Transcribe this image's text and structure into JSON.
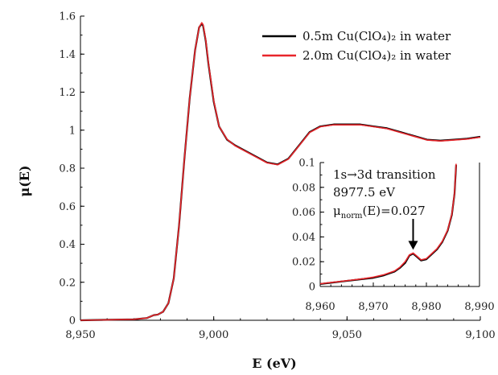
{
  "chart_data": [
    {
      "type": "line",
      "title": "",
      "xlabel": "E (eV)",
      "ylabel": "μ(E)",
      "xlim": [
        8950,
        9100
      ],
      "ylim": [
        0,
        1.6
      ],
      "x_ticks": [
        "8,950",
        "9,000",
        "9,050",
        "9,100"
      ],
      "x_tick_values": [
        8950,
        9000,
        9050,
        9100
      ],
      "y_ticks": [
        "0",
        "0.2",
        "0.4",
        "0.6",
        "0.8",
        "1",
        "1.2",
        "1.4",
        "1.6"
      ],
      "y_tick_values": [
        0,
        0.2,
        0.4,
        0.6,
        0.8,
        1.0,
        1.2,
        1.4,
        1.6
      ],
      "legend_position": "top-right",
      "series": [
        {
          "name": "0.5m Cu(ClO₄)₂ in water",
          "color": "#000000",
          "x": [
            8950,
            8970,
            8975,
            8977.5,
            8979,
            8981,
            8983,
            8985,
            8987,
            8989,
            8991,
            8993,
            8994.5,
            8995.5,
            8996,
            8997,
            8998,
            9000,
            9002,
            9005,
            9008,
            9012,
            9016,
            9020,
            9024,
            9028,
            9032,
            9036,
            9040,
            9045,
            9050,
            9055,
            9060,
            9065,
            9070,
            9075,
            9080,
            9085,
            9090,
            9095,
            9100
          ],
          "y": [
            0.0,
            0.005,
            0.012,
            0.027,
            0.03,
            0.045,
            0.09,
            0.22,
            0.5,
            0.85,
            1.17,
            1.42,
            1.54,
            1.56,
            1.55,
            1.47,
            1.35,
            1.15,
            1.02,
            0.95,
            0.92,
            0.89,
            0.86,
            0.83,
            0.82,
            0.85,
            0.92,
            0.99,
            1.02,
            1.03,
            1.03,
            1.03,
            1.02,
            1.01,
            0.99,
            0.97,
            0.95,
            0.945,
            0.95,
            0.955,
            0.965
          ]
        },
        {
          "name": "2.0m Cu(ClO₄)₂ in water",
          "color": "#e8262b",
          "x": [
            8950,
            8970,
            8975,
            8977.5,
            8979,
            8981,
            8983,
            8985,
            8987,
            8989,
            8991,
            8993,
            8994.5,
            8995.5,
            8996,
            8997,
            8998,
            9000,
            9002,
            9005,
            9008,
            9012,
            9016,
            9020,
            9024,
            9028,
            9032,
            9036,
            9040,
            9045,
            9050,
            9055,
            9060,
            9065,
            9070,
            9075,
            9080,
            9085,
            9090,
            9095,
            9100
          ],
          "y": [
            0.0,
            0.005,
            0.012,
            0.027,
            0.03,
            0.045,
            0.09,
            0.22,
            0.5,
            0.85,
            1.17,
            1.42,
            1.54,
            1.565,
            1.555,
            1.475,
            1.355,
            1.155,
            1.02,
            0.952,
            0.918,
            0.888,
            0.858,
            0.828,
            0.818,
            0.848,
            0.918,
            0.988,
            1.018,
            1.028,
            1.028,
            1.028,
            1.018,
            1.008,
            0.988,
            0.968,
            0.948,
            0.943,
            0.948,
            0.953,
            0.963
          ]
        }
      ]
    },
    {
      "type": "line",
      "title": "",
      "xlabel": "",
      "ylabel": "",
      "xlim": [
        8960,
        8990
      ],
      "ylim": [
        0,
        0.1
      ],
      "x_ticks": [
        "8,960",
        "8,970",
        "8,980",
        "8,990"
      ],
      "x_tick_values": [
        8960,
        8970,
        8980,
        8990
      ],
      "y_ticks": [
        "0",
        "0.02",
        "0.04",
        "0.06",
        "0.08",
        "0.1"
      ],
      "y_tick_values": [
        0,
        0.02,
        0.04,
        0.06,
        0.08,
        0.1
      ],
      "annotation": {
        "lines": [
          "1s→3d transition",
          "8977.5 eV"
        ],
        "mu_label": "μ",
        "mu_sub": "norm",
        "mu_rest": "(E)=0.027",
        "arrow_x": 8977.5,
        "arrow_y": 0.027
      },
      "series": [
        {
          "name": "0.5m Cu(ClO₄)₂ in water",
          "color": "#000000",
          "x": [
            8960,
            8962,
            8964,
            8966,
            8968,
            8970,
            8972,
            8974,
            8975,
            8976,
            8976.8,
            8977.5,
            8978.2,
            8979,
            8980,
            8981,
            8982,
            8983,
            8984,
            8984.8,
            8985.3,
            8985.6
          ],
          "y": [
            0.002,
            0.003,
            0.004,
            0.005,
            0.006,
            0.007,
            0.009,
            0.012,
            0.015,
            0.019,
            0.025,
            0.0265,
            0.024,
            0.021,
            0.022,
            0.026,
            0.03,
            0.036,
            0.045,
            0.058,
            0.075,
            0.098
          ]
        },
        {
          "name": "2.0m Cu(ClO₄)₂ in water",
          "color": "#e8262b",
          "x": [
            8960,
            8962,
            8964,
            8966,
            8968,
            8970,
            8972,
            8974,
            8975,
            8976,
            8976.8,
            8977.5,
            8978.2,
            8979,
            8980,
            8981,
            8982,
            8983,
            8984,
            8984.8,
            8985.3,
            8985.6
          ],
          "y": [
            0.0022,
            0.0032,
            0.0042,
            0.0052,
            0.0062,
            0.0075,
            0.0095,
            0.0125,
            0.0155,
            0.02,
            0.0255,
            0.027,
            0.0245,
            0.0215,
            0.0225,
            0.0265,
            0.0305,
            0.0365,
            0.0455,
            0.0585,
            0.0755,
            0.099
          ]
        }
      ]
    }
  ]
}
